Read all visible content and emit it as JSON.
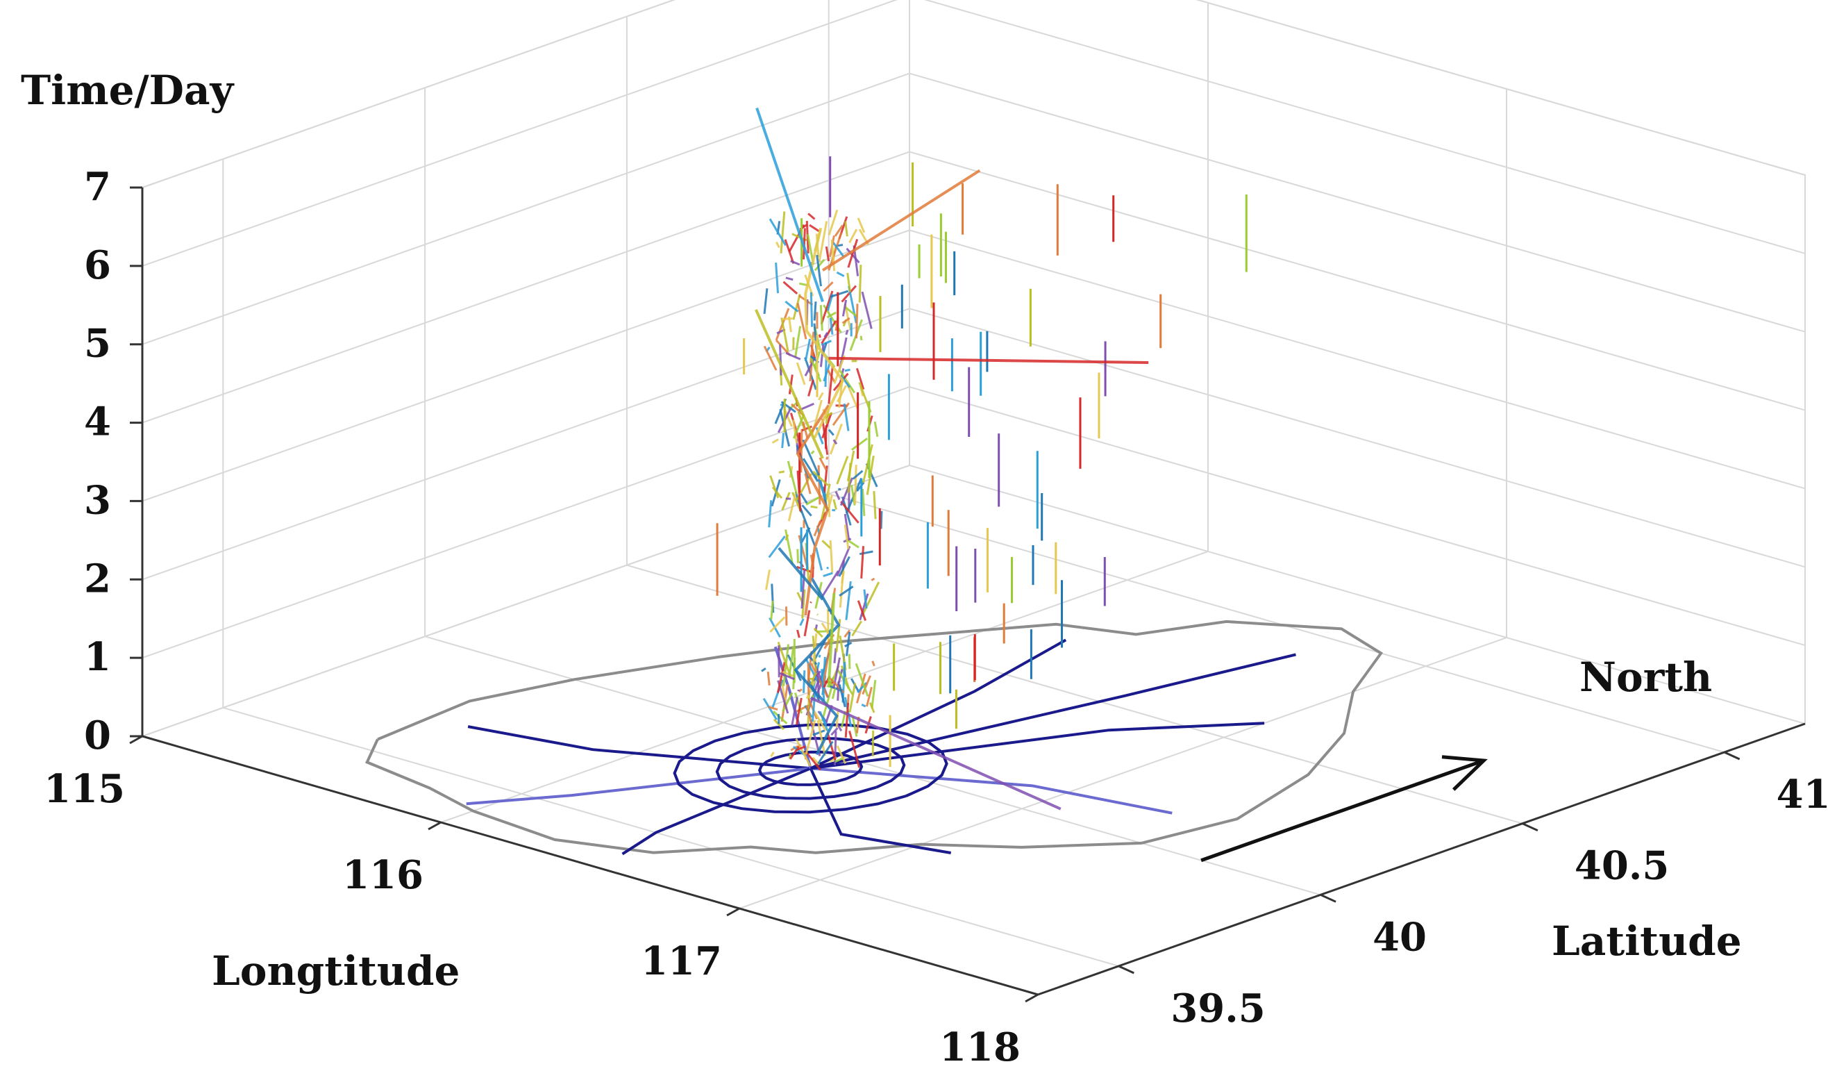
{
  "chart_data": {
    "type": "line",
    "projection": "3d",
    "xlabel": "Longtitude",
    "ylabel": "Latitude",
    "zlabel": "Time/Day",
    "x_ticks": [
      "115",
      "116",
      "117",
      "118"
    ],
    "y_ticks": [
      "39.5",
      "40",
      "40.5",
      "41"
    ],
    "z_ticks": [
      "0",
      "1",
      "2",
      "3",
      "4",
      "5",
      "6",
      "7"
    ],
    "xlim": [
      115,
      118
    ],
    "ylim": [
      39.3,
      41.2
    ],
    "zlim": [
      0,
      7
    ],
    "grid": true,
    "annotation": {
      "text": "North",
      "from": [
        117.6,
        40.0
      ],
      "to": [
        117.6,
        40.7
      ]
    },
    "trajectory_colors": [
      "#1f77b4",
      "#2b9fd9",
      "#d62728",
      "#e07b39",
      "#bcbd22",
      "#9acd32",
      "#e6c84f",
      "#7f4fb0"
    ],
    "column_center": [
      116.4,
      39.95
    ],
    "base_map": {
      "boundary_color": "#8c8c8c",
      "road_color": "#1a1a8c",
      "road_color_light": "#6a6ad0",
      "boundary": [
        [
          115.45,
          39.55
        ],
        [
          115.55,
          39.45
        ],
        [
          115.8,
          39.42
        ],
        [
          116.0,
          39.38
        ],
        [
          116.3,
          39.36
        ],
        [
          116.55,
          39.42
        ],
        [
          116.7,
          39.55
        ],
        [
          116.85,
          39.6
        ],
        [
          117.0,
          39.75
        ],
        [
          117.2,
          39.85
        ],
        [
          117.4,
          40.0
        ],
        [
          117.45,
          40.2
        ],
        [
          117.35,
          40.45
        ],
        [
          117.2,
          40.65
        ],
        [
          117.0,
          40.82
        ],
        [
          116.85,
          41.0
        ],
        [
          116.65,
          41.05
        ],
        [
          116.4,
          40.95
        ],
        [
          116.3,
          40.8
        ],
        [
          116.1,
          40.75
        ],
        [
          115.95,
          40.6
        ],
        [
          115.8,
          40.45
        ],
        [
          115.65,
          40.25
        ],
        [
          115.5,
          40.0
        ],
        [
          115.42,
          39.8
        ],
        [
          115.45,
          39.55
        ]
      ],
      "rings": [
        {
          "lon": 116.4,
          "lat": 39.92,
          "r": 0.12
        },
        {
          "lon": 116.4,
          "lat": 39.92,
          "r": 0.22
        },
        {
          "lon": 116.4,
          "lat": 39.92,
          "r": 0.32
        }
      ],
      "roads": [
        [
          [
            116.4,
            39.92
          ],
          [
            115.9,
            39.75
          ],
          [
            115.55,
            39.7
          ]
        ],
        [
          [
            116.4,
            39.92
          ],
          [
            116.1,
            39.55
          ],
          [
            115.95,
            39.4
          ]
        ],
        [
          [
            116.4,
            39.92
          ],
          [
            116.45,
            39.5
          ],
          [
            116.5,
            39.38
          ]
        ],
        [
          [
            116.4,
            39.92
          ],
          [
            116.8,
            39.7
          ],
          [
            117.1,
            39.75
          ]
        ],
        [
          [
            116.4,
            39.92
          ],
          [
            116.9,
            40.1
          ],
          [
            117.3,
            40.15
          ]
        ],
        [
          [
            116.4,
            39.92
          ],
          [
            116.75,
            40.4
          ],
          [
            117.0,
            40.6
          ]
        ],
        [
          [
            116.4,
            39.92
          ],
          [
            116.3,
            40.4
          ],
          [
            116.2,
            40.7
          ]
        ],
        [
          [
            116.4,
            39.92
          ],
          [
            115.95,
            40.2
          ],
          [
            115.7,
            40.35
          ]
        ],
        [
          [
            116.4,
            39.92
          ],
          [
            116.6,
            40.55
          ],
          [
            116.7,
            40.9
          ]
        ]
      ]
    },
    "trajectories": [
      {
        "points": [
          [
            116.38,
            39.95,
            0.1
          ],
          [
            116.42,
            39.97,
            0.6
          ],
          [
            116.35,
            39.92,
            1.2
          ],
          [
            116.44,
            39.96,
            1.8
          ],
          [
            116.39,
            39.93,
            2.4
          ]
        ]
      },
      {
        "points": [
          [
            116.41,
            39.9,
            2.0
          ],
          [
            116.36,
            39.96,
            2.7
          ],
          [
            116.43,
            39.94,
            3.3
          ],
          [
            116.37,
            39.91,
            4.0
          ],
          [
            116.42,
            39.95,
            4.6
          ]
        ]
      },
      {
        "points": [
          [
            116.4,
            39.93,
            4.2
          ],
          [
            116.44,
            39.97,
            4.9
          ],
          [
            116.36,
            39.94,
            5.5
          ],
          [
            116.41,
            39.9,
            6.1
          ],
          [
            116.38,
            39.96,
            6.8
          ]
        ]
      },
      {
        "points": [
          [
            116.4,
            39.95,
            5.9
          ],
          [
            115.3,
            40.6,
            5.98
          ]
        ]
      },
      {
        "points": [
          [
            116.4,
            39.95,
            3.9
          ],
          [
            115.5,
            40.45,
            3.9
          ]
        ]
      },
      {
        "points": [
          [
            116.4,
            39.92,
            0.9
          ],
          [
            117.4,
            39.8,
            0.8
          ]
        ]
      },
      {
        "points": [
          [
            116.42,
            39.95,
            5.2
          ],
          [
            116.95,
            40.35,
            5.0
          ]
        ]
      },
      {
        "points": [
          [
            116.42,
            39.95,
            1.0
          ],
          [
            116.1,
            40.2,
            1.4
          ]
        ]
      },
      {
        "points": [
          [
            116.4,
            39.95,
            2.1
          ],
          [
            116.05,
            40.1,
            2.1
          ]
        ]
      },
      {
        "points": [
          [
            116.4,
            39.95,
            6.3
          ],
          [
            116.25,
            40.45,
            6.5
          ]
        ]
      }
    ]
  }
}
